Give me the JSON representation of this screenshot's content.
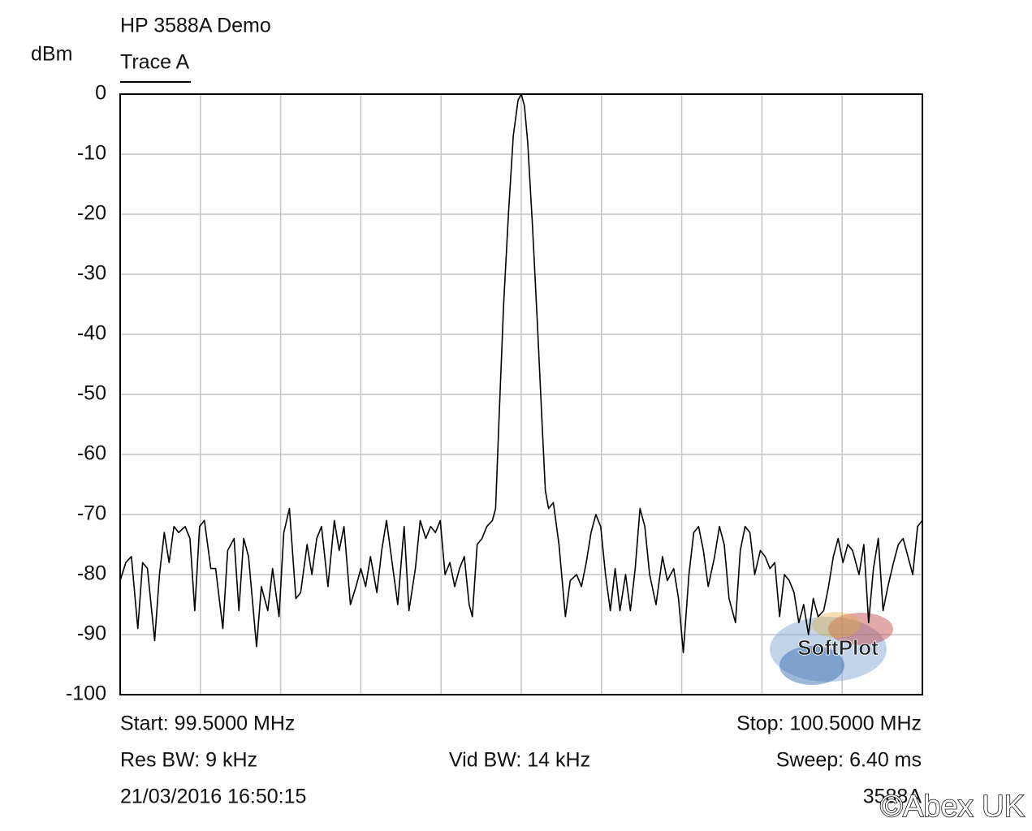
{
  "chart_data": {
    "type": "line",
    "title": "HP 3588A Demo",
    "y_label": "dBm",
    "annotations": [
      {
        "text": "Start: 99.5000 MHz"
      },
      {
        "text": "Stop: 100.5000 MHz"
      },
      {
        "text": "Res BW: 9 kHz"
      },
      {
        "text": "Vid BW: 14 kHz"
      },
      {
        "text": "Sweep: 6.40 ms"
      },
      {
        "text": "21/03/2016 16:50:15"
      },
      {
        "text": "3588A"
      },
      {
        "text": "SoftPlot"
      },
      {
        "text": "©Abex UK"
      }
    ],
    "xlim": [
      99.5,
      100.5
    ],
    "xgrid": [
      99.5,
      99.6,
      99.7,
      99.8,
      99.9,
      100.0,
      100.1,
      100.2,
      100.3,
      100.4,
      100.5
    ],
    "ylim": [
      -100,
      0
    ],
    "yticks": [
      0,
      -10,
      -20,
      -30,
      -40,
      -50,
      -60,
      -70,
      -80,
      -90,
      -100
    ],
    "grid": true,
    "legend": "top-left",
    "x": [
      99.5,
      99.507,
      99.514,
      99.522,
      99.528,
      99.534,
      99.543,
      99.549,
      99.555,
      99.561,
      99.567,
      99.573,
      99.581,
      99.587,
      99.593,
      99.599,
      99.605,
      99.613,
      99.619,
      99.628,
      99.634,
      99.642,
      99.648,
      99.654,
      99.66,
      99.67,
      99.676,
      99.684,
      99.69,
      99.698,
      99.704,
      99.711,
      99.719,
      99.725,
      99.733,
      99.739,
      99.745,
      99.751,
      99.759,
      99.767,
      99.773,
      99.779,
      99.787,
      99.794,
      99.8,
      99.806,
      99.812,
      99.82,
      99.826,
      99.832,
      99.84,
      99.846,
      99.854,
      99.86,
      99.868,
      99.874,
      99.881,
      99.887,
      99.893,
      99.899,
      99.905,
      99.911,
      99.917,
      99.923,
      99.929,
      99.935,
      99.939,
      99.945,
      99.951,
      99.957,
      99.964,
      99.968,
      99.972,
      99.978,
      99.984,
      99.99,
      99.996,
      100.0,
      100.004,
      100.008,
      100.014,
      100.02,
      100.026,
      100.03,
      100.034,
      100.04,
      100.047,
      100.055,
      100.061,
      100.069,
      100.075,
      100.081,
      100.087,
      100.093,
      100.099,
      100.105,
      100.111,
      100.117,
      100.123,
      100.13,
      100.136,
      100.142,
      100.148,
      100.154,
      100.16,
      100.168,
      100.176,
      100.182,
      100.19,
      100.196,
      100.202,
      100.209,
      100.215,
      100.221,
      100.227,
      100.233,
      100.241,
      100.247,
      100.253,
      100.259,
      100.267,
      100.273,
      100.279,
      100.285,
      100.291,
      100.298,
      100.304,
      100.31,
      100.316,
      100.322,
      100.328,
      100.334,
      100.34,
      100.346,
      100.352,
      100.358,
      100.364,
      100.37,
      100.377,
      100.383,
      100.389,
      100.395,
      100.401,
      100.407,
      100.413,
      100.421,
      100.427,
      100.433,
      100.439,
      100.445,
      100.451,
      100.457,
      100.464,
      100.47,
      100.476,
      100.482,
      100.488,
      100.494,
      100.5
    ],
    "series": [
      {
        "name": "Trace A",
        "color": "#000000",
        "values": [
          -81,
          -78,
          -77,
          -89,
          -78,
          -79,
          -91,
          -80,
          -73,
          -78,
          -72,
          -73,
          -72,
          -74,
          -86,
          -72,
          -71,
          -79,
          -79,
          -89,
          -76,
          -74,
          -86,
          -74,
          -77,
          -92,
          -82,
          -86,
          -79,
          -87,
          -73,
          -69,
          -84,
          -83,
          -75,
          -80,
          -74,
          -72,
          -82,
          -71,
          -76,
          -72,
          -85,
          -82,
          -79,
          -82,
          -77,
          -83,
          -76,
          -71,
          -79,
          -85,
          -72,
          -86,
          -79,
          -71,
          -74,
          -72,
          -73,
          -71,
          -80,
          -78,
          -82,
          -79,
          -77,
          -85,
          -87,
          -75,
          -74,
          -72,
          -71,
          -69,
          -55,
          -35,
          -20,
          -7,
          -1,
          0,
          -2,
          -8,
          -22,
          -38,
          -55,
          -66,
          -69,
          -68,
          -75,
          -87,
          -81,
          -80,
          -82,
          -78,
          -73,
          -70,
          -72,
          -80,
          -86,
          -79,
          -86,
          -80,
          -86,
          -79,
          -69,
          -72,
          -80,
          -85,
          -77,
          -81,
          -79,
          -84,
          -93,
          -80,
          -73,
          -72,
          -76,
          -82,
          -77,
          -72,
          -75,
          -84,
          -88,
          -76,
          -72,
          -73,
          -80,
          -76,
          -77,
          -79,
          -78,
          -87,
          -80,
          -81,
          -83,
          -88,
          -85,
          -90,
          -84,
          -87,
          -86,
          -82,
          -77,
          -74,
          -78,
          -75,
          -76,
          -80,
          -75,
          -88,
          -79,
          -74,
          -86,
          -82,
          -78,
          -75,
          -74,
          -77,
          -80,
          -72,
          -71
        ]
      }
    ]
  }
}
